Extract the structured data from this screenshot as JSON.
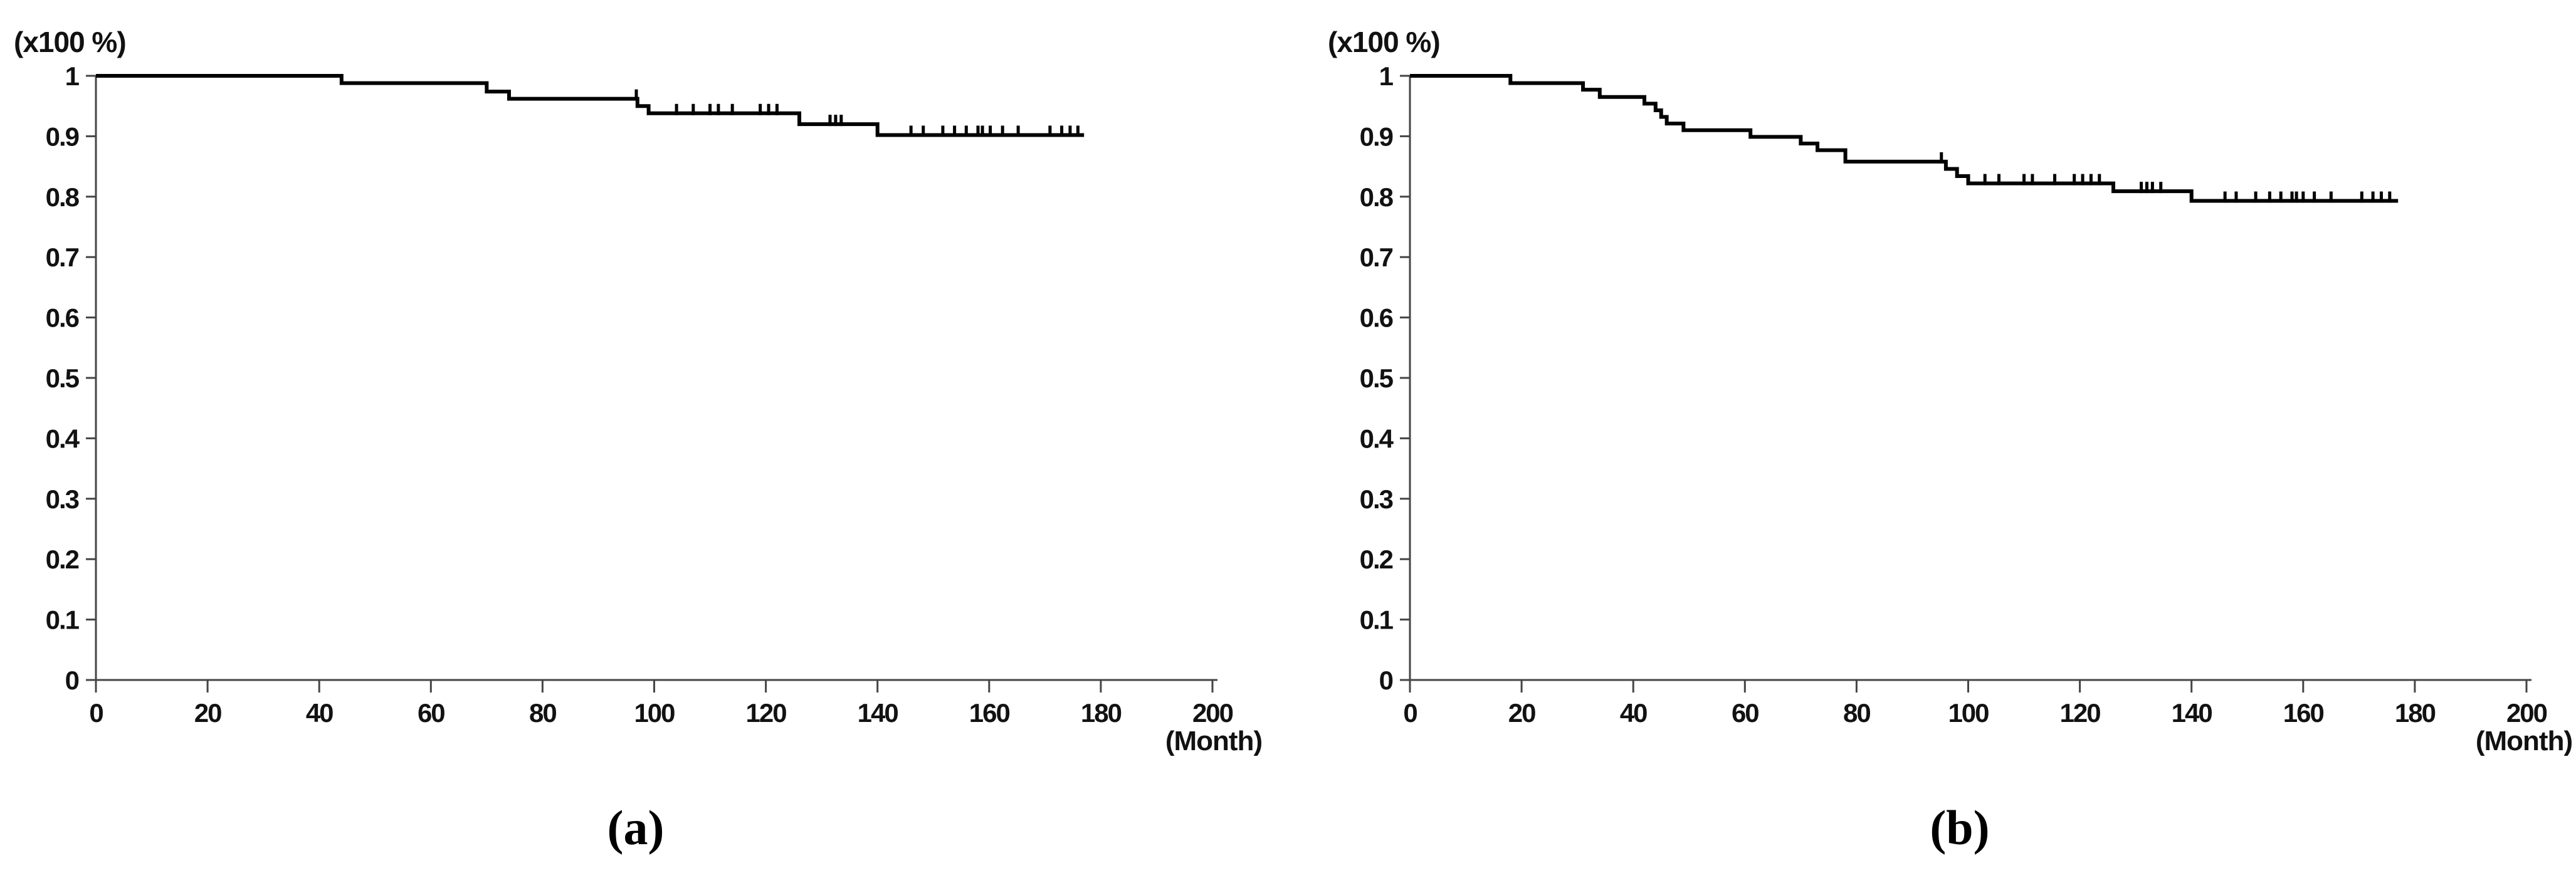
{
  "figure": {
    "background": "#ffffff",
    "curve_color": "#000000",
    "axis_color": "#454545",
    "text_color": "#121212"
  },
  "chart_data": [
    {
      "id": "a",
      "type": "line",
      "subtype": "kaplan-meier-step",
      "title": "",
      "caption": "(a)",
      "y_unit_label": "(x100 %)",
      "x_axis_label": "(Month)",
      "xlabel": "(Month)",
      "ylabel": "(x100 %)",
      "xlim": [
        0,
        200
      ],
      "ylim": [
        0,
        1
      ],
      "grid": false,
      "legend": "none",
      "x_tick_labels": [
        "0",
        "20",
        "40",
        "60",
        "80",
        "100",
        "120",
        "140",
        "160",
        "180",
        "200"
      ],
      "y_tick_labels": [
        "1",
        "0.9",
        "0.8",
        "0.7",
        "0.6",
        "0.5",
        "0.4",
        "0.3",
        "0.2",
        "0.1",
        "0"
      ],
      "steps": [
        [
          0,
          1.0
        ],
        [
          44,
          0.988
        ],
        [
          70,
          0.974
        ],
        [
          74,
          0.962
        ],
        [
          97,
          0.95
        ],
        [
          99,
          0.938
        ],
        [
          126,
          0.92
        ],
        [
          140,
          0.902
        ]
      ],
      "curve_end_month": 177,
      "censor_months": [
        96.8,
        104,
        107,
        110,
        111.5,
        114,
        119,
        120.5,
        122,
        131.5,
        132.5,
        133.5,
        146,
        148.2,
        151.7,
        153.8,
        155.9,
        158,
        158.8,
        160.2,
        162.4,
        165.2,
        170.9,
        173,
        174.5,
        175.9
      ]
    },
    {
      "id": "b",
      "type": "line",
      "subtype": "kaplan-meier-step",
      "title": "",
      "caption": "(b)",
      "y_unit_label": "(x100 %)",
      "x_axis_label": "(Month)",
      "xlabel": "(Month)",
      "ylabel": "(x100 %)",
      "xlim": [
        0,
        200
      ],
      "ylim": [
        0,
        1
      ],
      "grid": false,
      "legend": "none",
      "x_tick_labels": [
        "0",
        "20",
        "40",
        "60",
        "80",
        "100",
        "120",
        "140",
        "160",
        "180",
        "200"
      ],
      "y_tick_labels": [
        "1",
        "0.9",
        "0.8",
        "0.7",
        "0.6",
        "0.5",
        "0.4",
        "0.3",
        "0.2",
        "0.1",
        "0"
      ],
      "steps": [
        [
          0,
          1.0
        ],
        [
          18,
          0.988
        ],
        [
          31,
          0.977
        ],
        [
          34,
          0.965
        ],
        [
          42,
          0.954
        ],
        [
          44,
          0.943
        ],
        [
          45,
          0.932
        ],
        [
          46,
          0.921
        ],
        [
          49,
          0.91
        ],
        [
          61,
          0.899
        ],
        [
          70,
          0.888
        ],
        [
          73,
          0.877
        ],
        [
          78,
          0.858
        ],
        [
          96,
          0.846
        ],
        [
          98,
          0.834
        ],
        [
          100,
          0.822
        ],
        [
          126,
          0.809
        ],
        [
          140,
          0.793
        ]
      ],
      "curve_end_month": 177,
      "censor_months": [
        95.2,
        103,
        105.5,
        110,
        111.5,
        115.5,
        119,
        120.5,
        122,
        123.5,
        131,
        132,
        133,
        134.5,
        146,
        148,
        151.5,
        154,
        156,
        158,
        158.8,
        160,
        162,
        165,
        170.5,
        172.5,
        174,
        175.5
      ]
    }
  ]
}
